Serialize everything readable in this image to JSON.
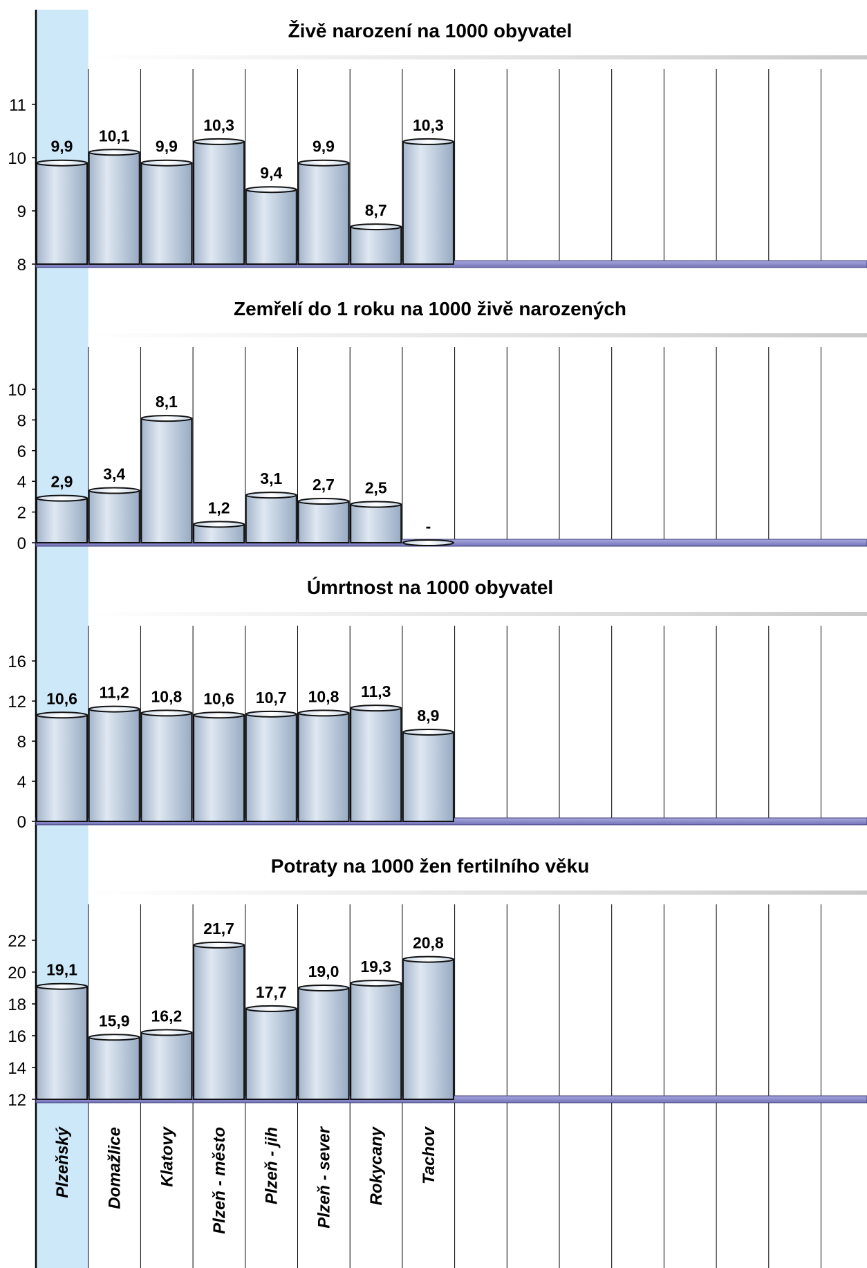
{
  "colors": {
    "highlight_column": "#cde9f9",
    "bar_fill": "#c3d2e4",
    "bar_stroke": "#111111",
    "baseline": "#9191cf",
    "grid": "#000000",
    "title_bar": "#cccccc"
  },
  "categories": [
    "Plzeňský",
    "Domažlice",
    "Klatovy",
    "Plzeň - město",
    "Plzeň - jih",
    "Plzeň - sever",
    "Rokycany",
    "Tachov"
  ],
  "highlighted_category": "Plzeňský",
  "chart_data": [
    {
      "type": "bar",
      "title": "Živě narození na 1000 obyvatel",
      "categories": [
        "Plzeňský",
        "Domažlice",
        "Klatovy",
        "Plzeň - město",
        "Plzeň - jih",
        "Plzeň - sever",
        "Rokycany",
        "Tachov"
      ],
      "values": [
        9.9,
        10.1,
        9.9,
        10.3,
        9.4,
        9.9,
        8.7,
        10.3
      ],
      "labels": [
        "9,9",
        "10,1",
        "9,9",
        "10,3",
        "9,4",
        "9,9",
        "8,7",
        "10,3"
      ],
      "ylim": [
        8,
        12
      ],
      "yticks": [
        8,
        9,
        10,
        11
      ],
      "grid": true
    },
    {
      "type": "bar",
      "title": "Zemřelí do 1 roku na 1000 živě narozených",
      "categories": [
        "Plzeňský",
        "Domažlice",
        "Klatovy",
        "Plzeň - město",
        "Plzeň - jih",
        "Plzeň - sever",
        "Rokycany",
        "Tachov"
      ],
      "values": [
        2.9,
        3.4,
        8.1,
        1.2,
        3.1,
        2.7,
        2.5,
        0
      ],
      "labels": [
        "2,9",
        "3,4",
        "8,1",
        "1,2",
        "3,1",
        "2,7",
        "2,5",
        "-"
      ],
      "ylim": [
        0,
        13
      ],
      "yticks": [
        0,
        2,
        4,
        6,
        8,
        10
      ],
      "grid": true
    },
    {
      "type": "bar",
      "title": "Úmrtnost na 1000 obyvatel",
      "categories": [
        "Plzeňský",
        "Domažlice",
        "Klatovy",
        "Plzeň - město",
        "Plzeň - jih",
        "Plzeň - sever",
        "Rokycany",
        "Tachov"
      ],
      "values": [
        10.6,
        11.2,
        10.8,
        10.6,
        10.7,
        10.8,
        11.3,
        8.9
      ],
      "labels": [
        "10,6",
        "11,2",
        "10,8",
        "10,6",
        "10,7",
        "10,8",
        "11,3",
        "8,9"
      ],
      "ylim": [
        0,
        20
      ],
      "yticks": [
        0,
        4,
        8,
        12,
        16
      ],
      "grid": true
    },
    {
      "type": "bar",
      "title": "Potraty na 1000 žen fertilního věku",
      "categories": [
        "Plzeňský",
        "Domažlice",
        "Klatovy",
        "Plzeň - město",
        "Plzeň - jih",
        "Plzeň - sever",
        "Rokycany",
        "Tachov"
      ],
      "values": [
        19.1,
        15.9,
        16.2,
        21.7,
        17.7,
        19.0,
        19.3,
        20.8
      ],
      "labels": [
        "19,1",
        "15,9",
        "16,2",
        "21,7",
        "17,7",
        "19,0",
        "19,3",
        "20,8"
      ],
      "ylim": [
        12,
        25
      ],
      "yticks": [
        12,
        14,
        16,
        18,
        20,
        22
      ],
      "grid": true
    }
  ]
}
